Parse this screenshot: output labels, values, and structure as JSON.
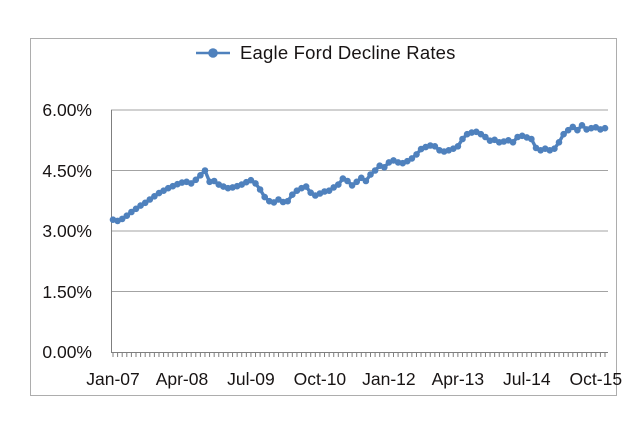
{
  "window": {
    "background": "#ffffff"
  },
  "legend": {
    "label": "Eagle Ford Decline Rates"
  },
  "y_axis": {
    "tick_labels": [
      "6.00%",
      "4.50%",
      "3.00%",
      "1.50%",
      "0.00%"
    ]
  },
  "x_axis": {
    "tick_labels": [
      "Jan-07",
      "Apr-08",
      "Jul-09",
      "Oct-10",
      "Jan-12",
      "Apr-13",
      "Jul-14",
      "Oct-15"
    ]
  },
  "chart_data": {
    "type": "line",
    "title": "Eagle Ford Decline Rates",
    "legend_position": "top",
    "grid": "horizontal",
    "ylim": [
      0,
      6
    ],
    "y_ticks_percent": [
      0,
      1.5,
      3,
      4.5,
      6
    ],
    "y_tick_format": "0.00%",
    "x_start": "Jan-07",
    "x_end": "Dec-15",
    "x_interval": "1 month",
    "x_visible_tick_labels": [
      "Jan-07",
      "Apr-08",
      "Jul-09",
      "Oct-10",
      "Jan-12",
      "Apr-13",
      "Jul-14",
      "Oct-15"
    ],
    "x_visible_tick_indices": [
      0,
      15,
      30,
      45,
      60,
      75,
      90,
      105
    ],
    "series": [
      {
        "name": "Eagle Ford Decline Rates",
        "marker": "circle",
        "color": "#4F81BD",
        "values_percent": [
          3.28,
          3.25,
          3.3,
          3.38,
          3.47,
          3.55,
          3.63,
          3.7,
          3.78,
          3.86,
          3.94,
          4.0,
          4.06,
          4.11,
          4.16,
          4.2,
          4.22,
          4.18,
          4.27,
          4.38,
          4.5,
          4.22,
          4.24,
          4.15,
          4.1,
          4.06,
          4.08,
          4.11,
          4.15,
          4.21,
          4.26,
          4.18,
          4.03,
          3.84,
          3.74,
          3.71,
          3.78,
          3.72,
          3.74,
          3.9,
          4.0,
          4.06,
          4.1,
          3.95,
          3.88,
          3.93,
          3.98,
          4.0,
          4.08,
          4.15,
          4.3,
          4.24,
          4.13,
          4.22,
          4.32,
          4.24,
          4.4,
          4.5,
          4.62,
          4.58,
          4.7,
          4.75,
          4.7,
          4.68,
          4.73,
          4.8,
          4.9,
          5.03,
          5.08,
          5.12,
          5.1,
          5.0,
          4.97,
          5.0,
          5.04,
          5.1,
          5.28,
          5.4,
          5.44,
          5.46,
          5.4,
          5.33,
          5.24,
          5.26,
          5.2,
          5.22,
          5.25,
          5.2,
          5.33,
          5.36,
          5.32,
          5.28,
          5.06,
          5.0,
          5.04,
          5.0,
          5.04,
          5.2,
          5.4,
          5.5,
          5.58,
          5.5,
          5.62,
          5.52,
          5.55,
          5.57,
          5.52,
          5.55
        ]
      }
    ],
    "colors": {
      "line": "#4F81BD",
      "gridline": "#a3a3a3",
      "axis": "#7f7f7f",
      "text": "#181414",
      "frame_border": "#adadad"
    }
  }
}
